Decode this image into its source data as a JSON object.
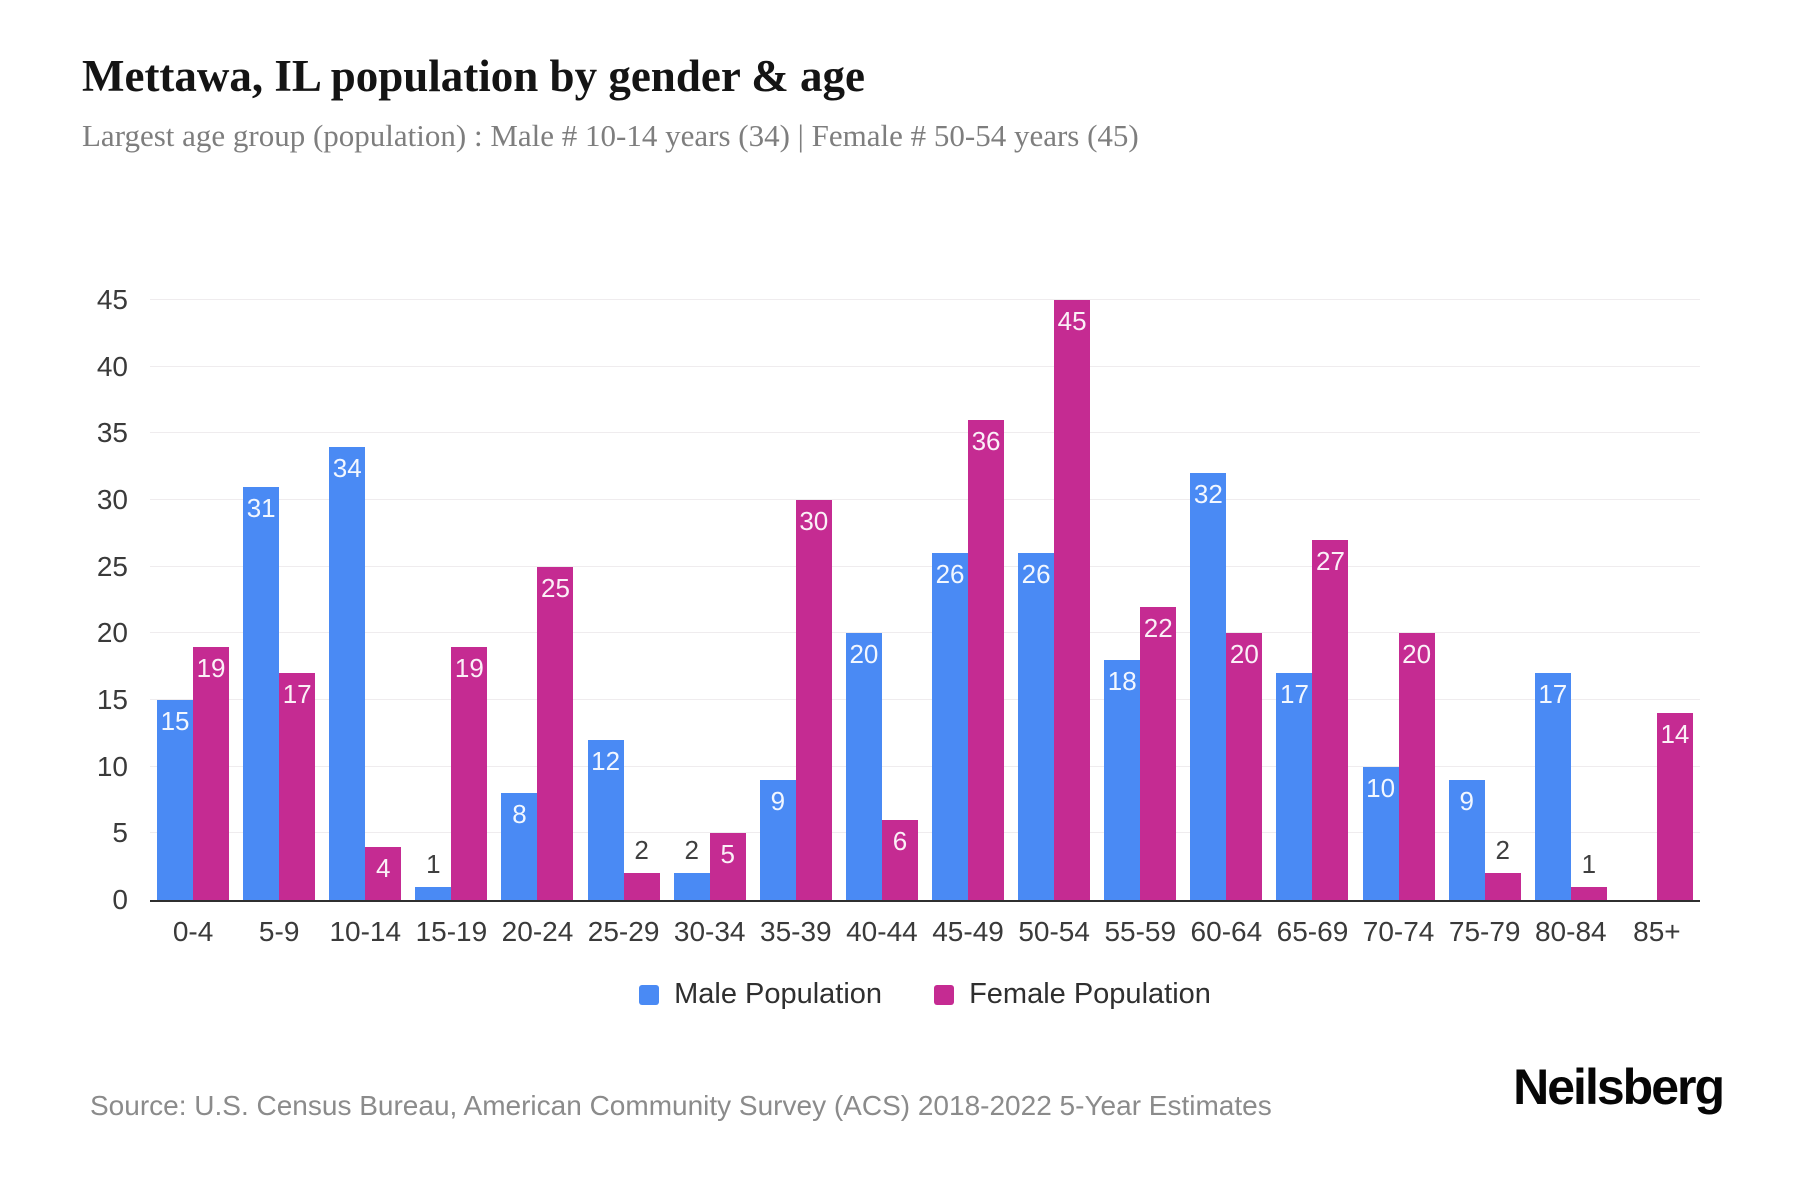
{
  "header": {
    "title": "Mettawa, IL population by gender & age",
    "subtitle": "Largest age group (population) : Male # 10-14 years (34) | Female # 50-54 years (45)"
  },
  "chart_data": {
    "type": "bar",
    "title": "Mettawa, IL population by gender & age",
    "categories": [
      "0-4",
      "5-9",
      "10-14",
      "15-19",
      "20-24",
      "25-29",
      "30-34",
      "35-39",
      "40-44",
      "45-49",
      "50-54",
      "55-59",
      "60-64",
      "65-69",
      "70-74",
      "75-79",
      "80-84",
      "85+"
    ],
    "series": [
      {
        "name": "Male Population",
        "color": "#4A8AF4",
        "values": [
          15,
          31,
          34,
          1,
          8,
          12,
          2,
          9,
          20,
          26,
          26,
          18,
          32,
          17,
          10,
          9,
          17,
          0
        ]
      },
      {
        "name": "Female Population",
        "color": "#C52B92",
        "values": [
          19,
          17,
          4,
          19,
          25,
          2,
          5,
          30,
          6,
          36,
          45,
          22,
          20,
          27,
          20,
          2,
          1,
          14
        ]
      }
    ],
    "xlabel": "",
    "ylabel": "",
    "ylim": [
      0,
      45
    ],
    "yticks": [
      0,
      5,
      10,
      15,
      20,
      25,
      30,
      35,
      40,
      45
    ],
    "grid": true,
    "legend_position": "bottom",
    "inside_label_min": 4
  },
  "footer": {
    "source": "Source: U.S. Census Bureau, American Community Survey (ACS) 2018-2022 5-Year Estimates",
    "brand": "Neilsberg"
  }
}
